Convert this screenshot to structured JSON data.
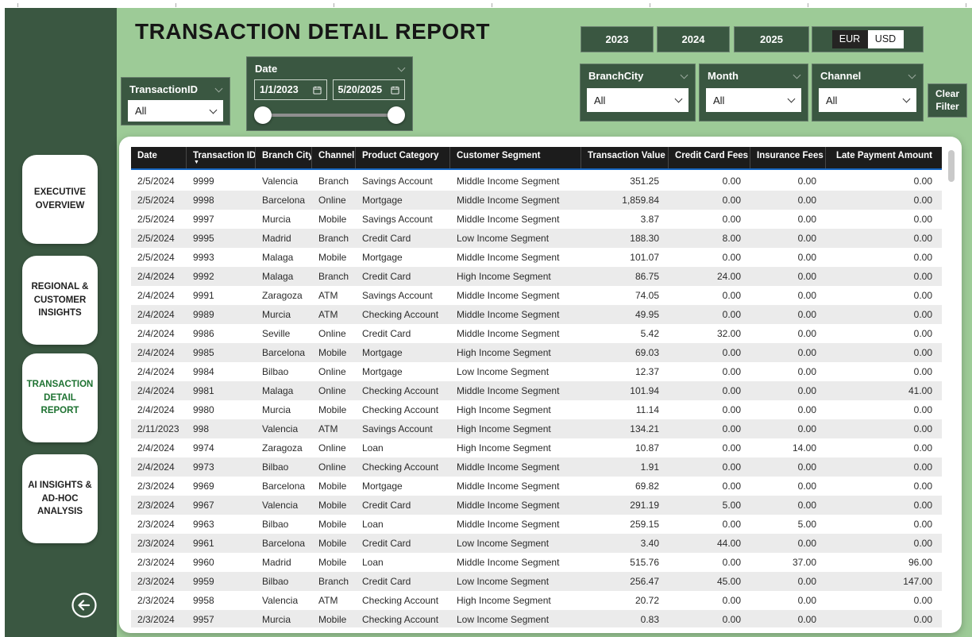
{
  "header": {
    "title": "TRANSACTION DETAIL REPORT",
    "year_buttons": [
      "2023",
      "2024",
      "2025"
    ],
    "currency_toggle": {
      "options": [
        "EUR",
        "USD"
      ],
      "selected": "EUR"
    },
    "clear_filter_label": "Clear Filter"
  },
  "filters": {
    "transaction_id": {
      "label": "TransactionID",
      "value": "All"
    },
    "date": {
      "label": "Date",
      "start": "1/1/2023",
      "end": "5/20/2025"
    },
    "branch_city": {
      "label": "BranchCity",
      "value": "All"
    },
    "month": {
      "label": "Month",
      "value": "All"
    },
    "channel": {
      "label": "Channel",
      "value": "All"
    }
  },
  "sidebar": {
    "items": [
      {
        "label": "EXECUTIVE OVERVIEW",
        "active": false
      },
      {
        "label": "REGIONAL & CUSTOMER INSIGHTS",
        "active": false
      },
      {
        "label": "TRANSACTION DETAIL REPORT",
        "active": true
      },
      {
        "label": "AI INSIGHTS & AD-HOC ANALYSIS",
        "active": false
      }
    ],
    "back_icon": "back-arrow"
  },
  "table": {
    "columns": [
      {
        "label": "Date"
      },
      {
        "label": "Transaction ID",
        "sorted": "desc"
      },
      {
        "label": "Branch City"
      },
      {
        "label": "Channel"
      },
      {
        "label": "Product Category"
      },
      {
        "label": "Customer Segment"
      },
      {
        "label": "Transaction Value"
      },
      {
        "label": "Credit Card Fees"
      },
      {
        "label": "Insurance Fees"
      },
      {
        "label": "Late Payment Amount"
      }
    ],
    "rows": [
      [
        "2/5/2024",
        "9999",
        "Valencia",
        "Branch",
        "Savings Account",
        "Middle Income Segment",
        "351.25",
        "0.00",
        "0.00",
        "0.00"
      ],
      [
        "2/5/2024",
        "9998",
        "Barcelona",
        "Online",
        "Mortgage",
        "Middle Income Segment",
        "1,859.84",
        "0.00",
        "0.00",
        "0.00"
      ],
      [
        "2/5/2024",
        "9997",
        "Murcia",
        "Mobile",
        "Savings Account",
        "Middle Income Segment",
        "3.87",
        "0.00",
        "0.00",
        "0.00"
      ],
      [
        "2/5/2024",
        "9995",
        "Madrid",
        "Branch",
        "Credit Card",
        "Low Income Segment",
        "188.30",
        "8.00",
        "0.00",
        "0.00"
      ],
      [
        "2/5/2024",
        "9993",
        "Malaga",
        "Mobile",
        "Mortgage",
        "Middle Income Segment",
        "101.07",
        "0.00",
        "0.00",
        "0.00"
      ],
      [
        "2/4/2024",
        "9992",
        "Malaga",
        "Branch",
        "Credit Card",
        "High Income Segment",
        "86.75",
        "24.00",
        "0.00",
        "0.00"
      ],
      [
        "2/4/2024",
        "9991",
        "Zaragoza",
        "ATM",
        "Savings Account",
        "Middle Income Segment",
        "74.05",
        "0.00",
        "0.00",
        "0.00"
      ],
      [
        "2/4/2024",
        "9989",
        "Murcia",
        "ATM",
        "Checking Account",
        "Middle Income Segment",
        "49.95",
        "0.00",
        "0.00",
        "0.00"
      ],
      [
        "2/4/2024",
        "9986",
        "Seville",
        "Online",
        "Credit Card",
        "Middle Income Segment",
        "5.42",
        "32.00",
        "0.00",
        "0.00"
      ],
      [
        "2/4/2024",
        "9985",
        "Barcelona",
        "Mobile",
        "Mortgage",
        "High Income Segment",
        "69.03",
        "0.00",
        "0.00",
        "0.00"
      ],
      [
        "2/4/2024",
        "9984",
        "Bilbao",
        "Online",
        "Mortgage",
        "Low Income Segment",
        "12.37",
        "0.00",
        "0.00",
        "0.00"
      ],
      [
        "2/4/2024",
        "9981",
        "Malaga",
        "Online",
        "Checking Account",
        "Middle Income Segment",
        "101.94",
        "0.00",
        "0.00",
        "41.00"
      ],
      [
        "2/4/2024",
        "9980",
        "Murcia",
        "Mobile",
        "Checking Account",
        "High Income Segment",
        "11.14",
        "0.00",
        "0.00",
        "0.00"
      ],
      [
        "2/11/2023",
        "998",
        "Valencia",
        "ATM",
        "Savings Account",
        "High Income Segment",
        "134.21",
        "0.00",
        "0.00",
        "0.00"
      ],
      [
        "2/4/2024",
        "9974",
        "Zaragoza",
        "Online",
        "Loan",
        "High Income Segment",
        "10.87",
        "0.00",
        "14.00",
        "0.00"
      ],
      [
        "2/4/2024",
        "9973",
        "Bilbao",
        "Online",
        "Checking Account",
        "Middle Income Segment",
        "1.91",
        "0.00",
        "0.00",
        "0.00"
      ],
      [
        "2/3/2024",
        "9969",
        "Barcelona",
        "Mobile",
        "Mortgage",
        "Middle Income Segment",
        "69.82",
        "0.00",
        "0.00",
        "0.00"
      ],
      [
        "2/3/2024",
        "9967",
        "Valencia",
        "Mobile",
        "Credit Card",
        "Middle Income Segment",
        "291.19",
        "5.00",
        "0.00",
        "0.00"
      ],
      [
        "2/3/2024",
        "9963",
        "Bilbao",
        "Mobile",
        "Loan",
        "Middle Income Segment",
        "259.15",
        "0.00",
        "5.00",
        "0.00"
      ],
      [
        "2/3/2024",
        "9961",
        "Barcelona",
        "Mobile",
        "Credit Card",
        "Low Income Segment",
        "3.40",
        "44.00",
        "0.00",
        "0.00"
      ],
      [
        "2/3/2024",
        "9960",
        "Madrid",
        "Mobile",
        "Loan",
        "Middle Income Segment",
        "515.76",
        "0.00",
        "37.00",
        "96.00"
      ],
      [
        "2/3/2024",
        "9959",
        "Bilbao",
        "Branch",
        "Credit Card",
        "Low Income Segment",
        "256.47",
        "45.00",
        "0.00",
        "147.00"
      ],
      [
        "2/3/2024",
        "9958",
        "Valencia",
        "ATM",
        "Checking Account",
        "High Income Segment",
        "20.72",
        "0.00",
        "0.00",
        "0.00"
      ],
      [
        "2/3/2024",
        "9957",
        "Murcia",
        "Mobile",
        "Checking Account",
        "Low Income Segment",
        "0.83",
        "0.00",
        "0.00",
        "0.00"
      ]
    ]
  },
  "colors": {
    "sidebar_green": "#3A5741",
    "canvas_green": "#9DCB97",
    "active_nav_green": "#1D7231",
    "table_header_bg": "#1C1C1C",
    "table_header_underline": "#1565C0",
    "row_alt": "#EBEBEB"
  }
}
